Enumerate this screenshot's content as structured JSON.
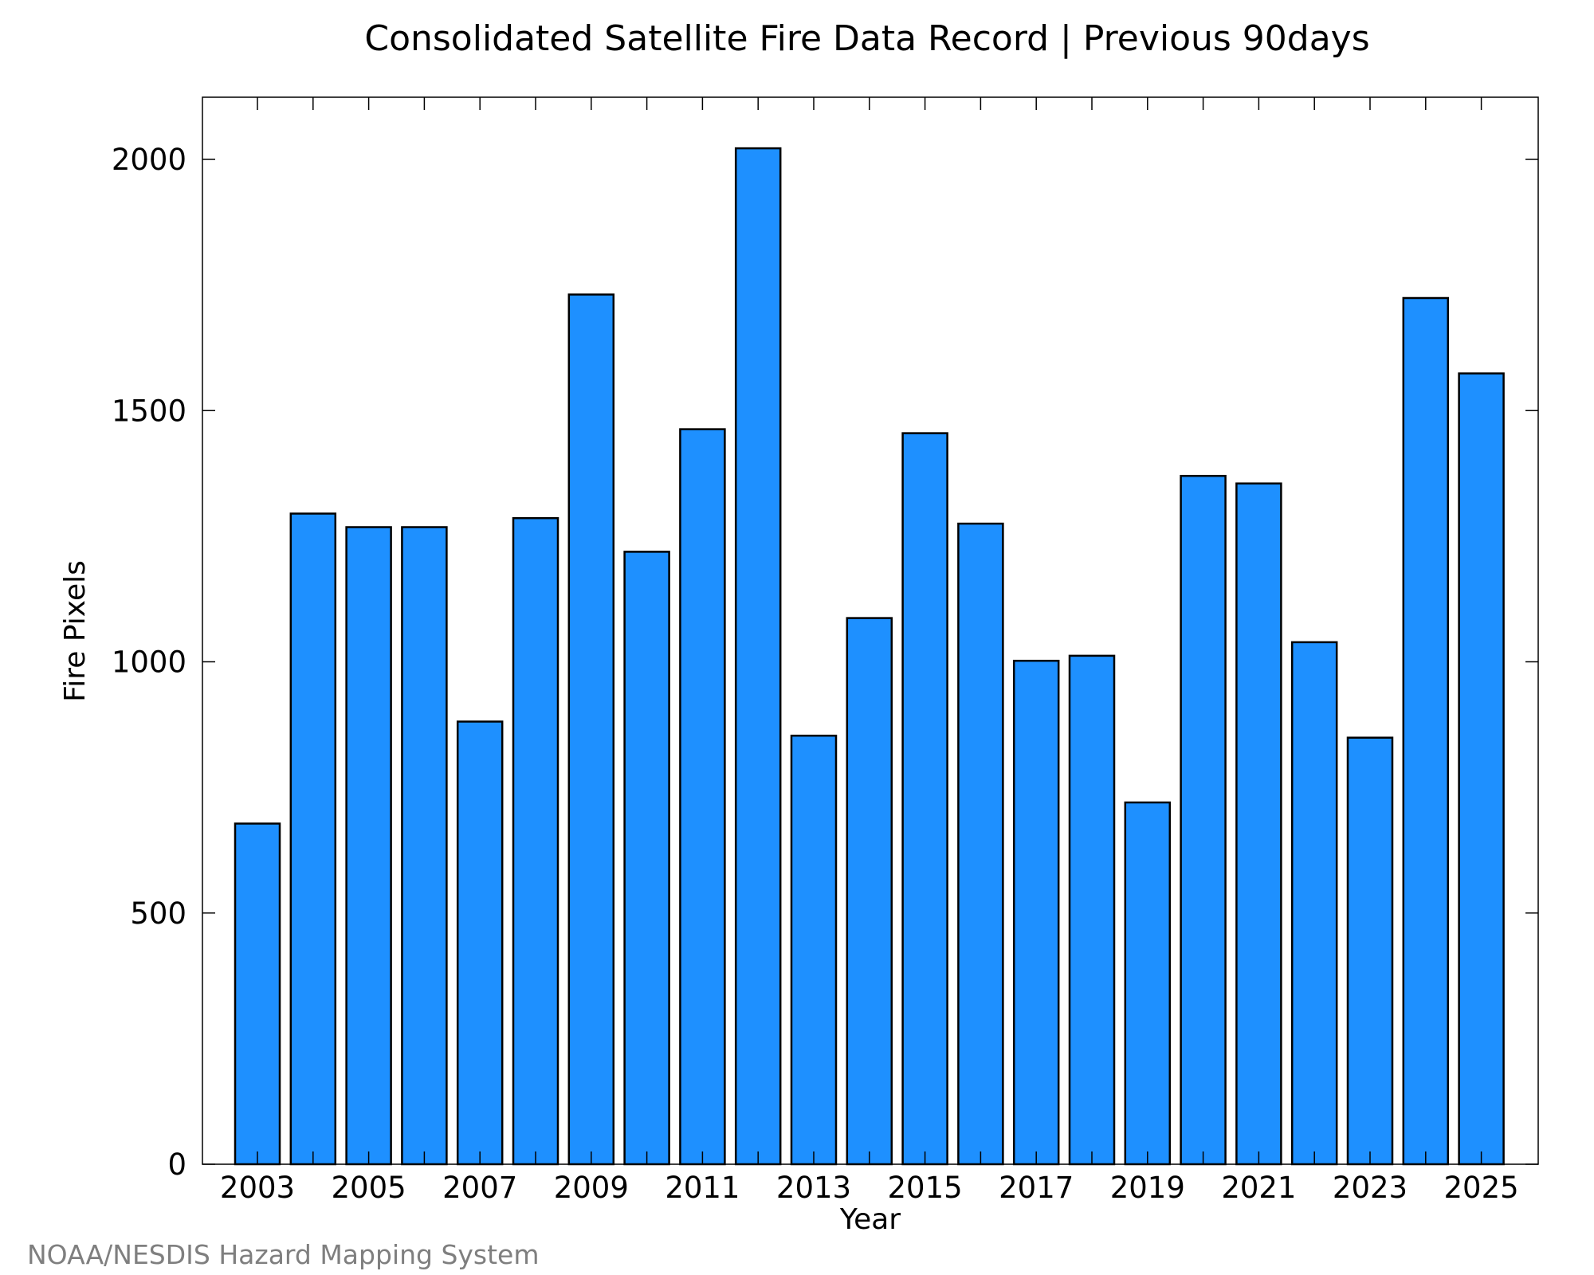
{
  "chart_data": {
    "type": "bar",
    "title": "Consolidated Satellite Fire Data Record | Previous 90days",
    "xlabel": "Year",
    "ylabel": "Fire Pixels",
    "categories": [
      "2003",
      "2004",
      "2005",
      "2006",
      "2007",
      "2008",
      "2009",
      "2010",
      "2011",
      "2012",
      "2013",
      "2014",
      "2015",
      "2016",
      "2017",
      "2018",
      "2019",
      "2020",
      "2021",
      "2022",
      "2023",
      "2024",
      "2025"
    ],
    "values": [
      678,
      1295,
      1268,
      1268,
      881,
      1286,
      1731,
      1219,
      1463,
      2022,
      853,
      1087,
      1455,
      1275,
      1002,
      1012,
      720,
      1370,
      1355,
      1039,
      849,
      1724,
      1574
    ],
    "x_tick_labels": [
      "2003",
      "2005",
      "2007",
      "2009",
      "2011",
      "2013",
      "2015",
      "2017",
      "2019",
      "2021",
      "2023",
      "2025"
    ],
    "y_ticks": [
      0,
      500,
      1000,
      1500,
      2000
    ],
    "ylim": [
      0,
      2125
    ],
    "grid": false,
    "bar_color": "#1e90ff",
    "edge_color": "#000000"
  },
  "credit": "NOAA/NESDIS Hazard Mapping System"
}
